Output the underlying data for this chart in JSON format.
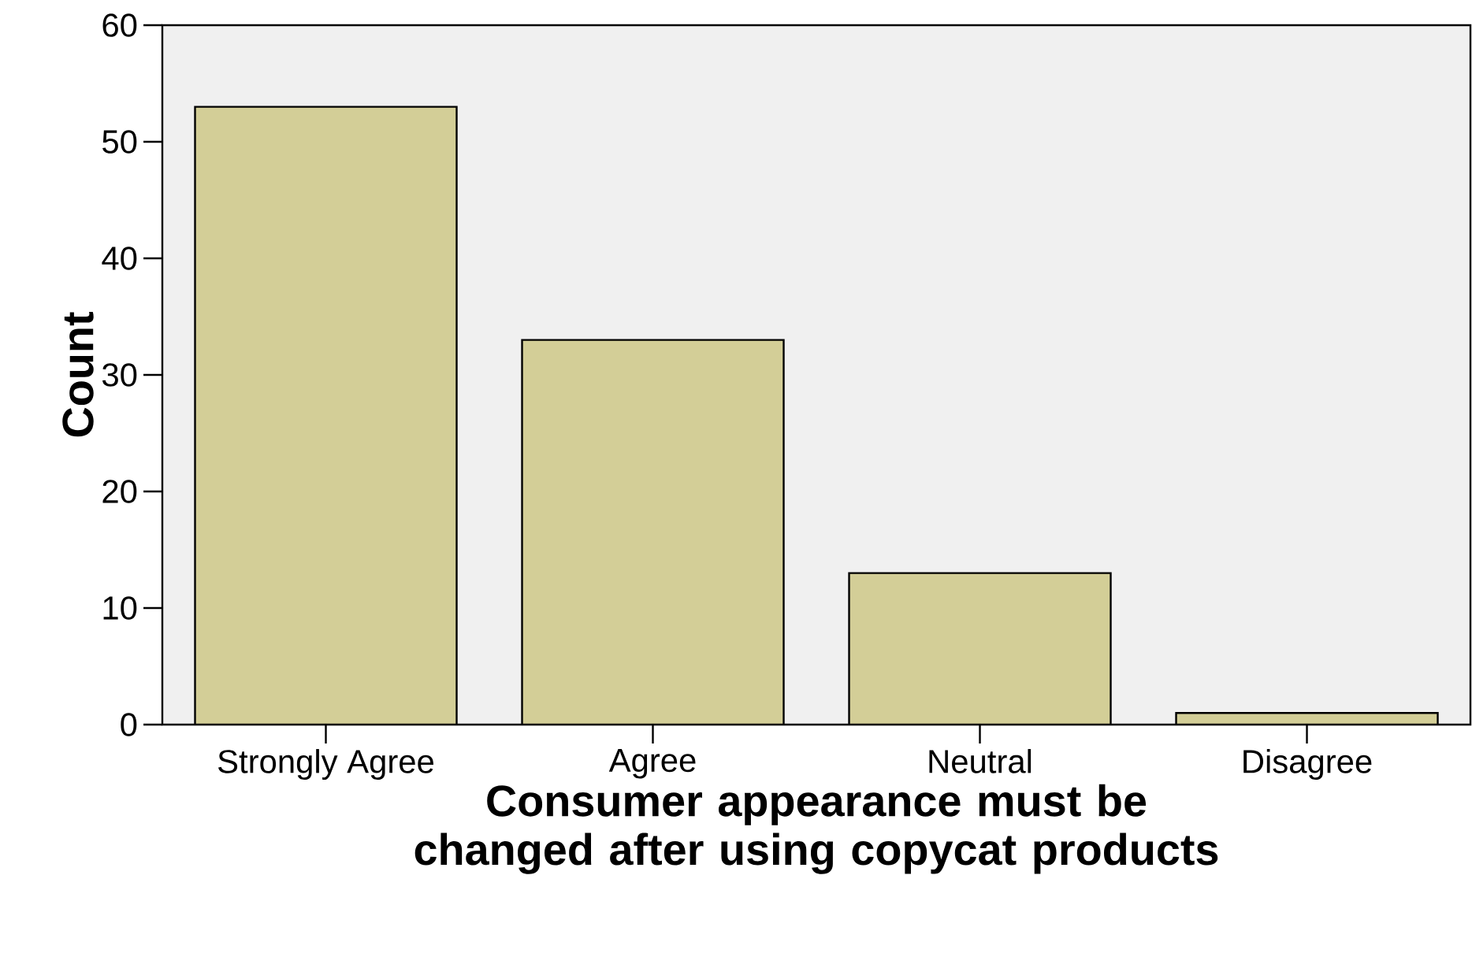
{
  "chart_data": {
    "type": "bar",
    "categories": [
      "Strongly Agree",
      "Agree",
      "Neutral",
      "Disagree"
    ],
    "values": [
      53,
      33,
      13,
      1
    ],
    "color": "#d3ce97",
    "xlabel": "Consumer appearance must be changed after using copycat products",
    "ylabel": "Count",
    "ylim": [
      0,
      60
    ],
    "yticks": [
      0,
      10,
      20,
      30,
      40,
      50,
      60
    ],
    "grid": false
  }
}
